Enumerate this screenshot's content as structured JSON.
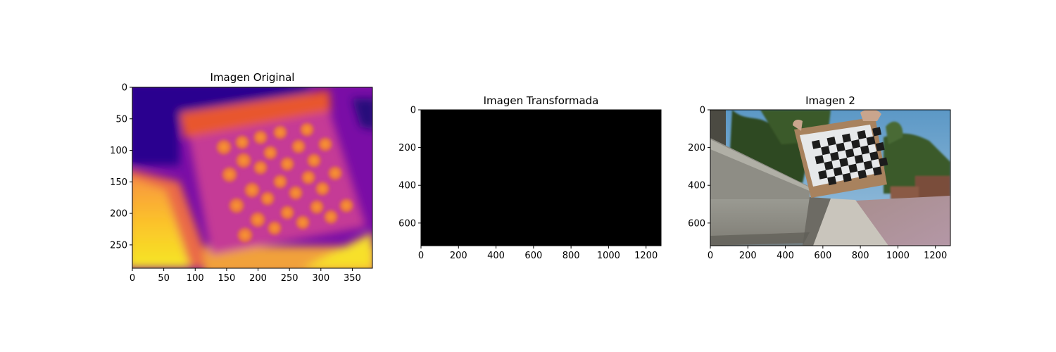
{
  "chart_data": [
    {
      "type": "image",
      "title": "Imagen Original",
      "content": "thermal image of a heated checkerboard calibration pattern, plasma colormap",
      "colormap": "plasma",
      "xlim": [
        0,
        382
      ],
      "ylim": [
        287,
        0
      ],
      "xticks": [
        0,
        50,
        100,
        150,
        200,
        250,
        300,
        350
      ],
      "yticks": [
        0,
        50,
        100,
        150,
        200,
        250
      ]
    },
    {
      "type": "image",
      "title": "Imagen Transformada",
      "content": "entirely black image",
      "fill_color": "#000000",
      "xlim": [
        0,
        1280
      ],
      "ylim": [
        720,
        0
      ],
      "xticks": [
        0,
        200,
        400,
        600,
        800,
        1000,
        1200
      ],
      "yticks": [
        0,
        200,
        400,
        600
      ]
    },
    {
      "type": "image",
      "title": "Imagen 2",
      "content": "outdoor photo of a checkerboard calibration board held above concrete steps next to a sidewalk and trees",
      "xlim": [
        0,
        1280
      ],
      "ylim": [
        720,
        0
      ],
      "xticks": [
        0,
        200,
        400,
        600,
        800,
        1000,
        1200
      ],
      "yticks": [
        0,
        200,
        400,
        600
      ]
    }
  ]
}
